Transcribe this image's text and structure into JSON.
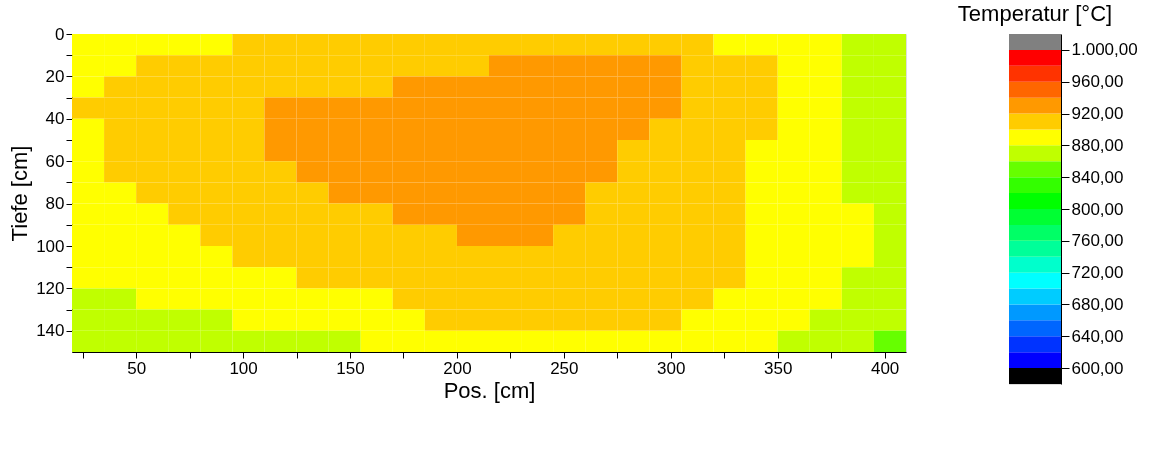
{
  "chart_data": {
    "type": "heatmap",
    "xlabel": "Pos. [cm]",
    "ylabel": "Tiefe [cm]",
    "clabel": "Temperatur [°C]",
    "x": [
      27.5,
      42.5,
      57.5,
      72.5,
      87.5,
      102.5,
      117.5,
      132.5,
      147.5,
      162.5,
      177.5,
      192.5,
      207.5,
      222.5,
      237.5,
      252.5,
      267.5,
      282.5,
      297.5,
      312.5,
      327.5,
      342.5,
      357.5,
      372.5,
      387.5,
      402.5
    ],
    "y": [
      5,
      15,
      25,
      35,
      45,
      55,
      65,
      75,
      85,
      95,
      105,
      115,
      125,
      135,
      145
    ],
    "xlim": [
      20,
      410
    ],
    "xticks": [
      {
        "value": 25,
        "label": null
      },
      50,
      {
        "value": 75,
        "label": null
      },
      100,
      {
        "value": 125,
        "label": null
      },
      150,
      {
        "value": 175,
        "label": null
      },
      200,
      {
        "value": 225,
        "label": null
      },
      250,
      {
        "value": 275,
        "label": null
      },
      300,
      {
        "value": 325,
        "label": null
      },
      350,
      {
        "value": 375,
        "label": null
      },
      400
    ],
    "ylim": [
      150,
      0
    ],
    "yticks": [
      0,
      {
        "value": 10,
        "label": null
      },
      20,
      {
        "value": 30,
        "label": null
      },
      40,
      {
        "value": 50,
        "label": null
      },
      60,
      {
        "value": 70,
        "label": null
      },
      80,
      {
        "value": 90,
        "label": null
      },
      100,
      {
        "value": 110,
        "label": null
      },
      120,
      {
        "value": 130,
        "label": null
      },
      140
    ],
    "cells": [
      [
        890,
        890,
        890,
        890,
        890,
        910,
        910,
        910,
        910,
        910,
        910,
        910,
        910,
        910,
        910,
        910,
        910,
        910,
        910,
        910,
        890,
        890,
        890,
        890,
        870,
        870
      ],
      [
        890,
        890,
        910,
        910,
        910,
        910,
        910,
        910,
        910,
        910,
        910,
        910,
        910,
        930,
        930,
        930,
        930,
        930,
        930,
        910,
        910,
        910,
        890,
        890,
        870,
        870
      ],
      [
        890,
        910,
        910,
        910,
        910,
        910,
        910,
        910,
        910,
        910,
        930,
        930,
        930,
        930,
        930,
        930,
        930,
        930,
        930,
        910,
        910,
        910,
        890,
        890,
        870,
        870
      ],
      [
        910,
        910,
        910,
        910,
        910,
        910,
        930,
        930,
        930,
        930,
        930,
        930,
        930,
        930,
        930,
        930,
        930,
        930,
        930,
        910,
        910,
        910,
        890,
        890,
        870,
        870
      ],
      [
        890,
        910,
        910,
        910,
        910,
        910,
        930,
        930,
        930,
        930,
        930,
        930,
        930,
        930,
        930,
        930,
        930,
        930,
        910,
        910,
        910,
        910,
        890,
        890,
        870,
        870
      ],
      [
        890,
        910,
        910,
        910,
        910,
        910,
        930,
        930,
        930,
        930,
        930,
        930,
        930,
        930,
        930,
        930,
        930,
        910,
        910,
        910,
        910,
        890,
        890,
        890,
        870,
        870
      ],
      [
        890,
        910,
        910,
        910,
        910,
        910,
        910,
        930,
        930,
        930,
        930,
        930,
        930,
        930,
        930,
        930,
        930,
        910,
        910,
        910,
        910,
        890,
        890,
        890,
        870,
        870
      ],
      [
        890,
        890,
        910,
        910,
        910,
        910,
        910,
        910,
        930,
        930,
        930,
        930,
        930,
        930,
        930,
        930,
        910,
        910,
        910,
        910,
        910,
        890,
        890,
        890,
        870,
        870
      ],
      [
        890,
        890,
        890,
        910,
        910,
        910,
        910,
        910,
        910,
        910,
        930,
        930,
        930,
        930,
        930,
        930,
        910,
        910,
        910,
        910,
        910,
        890,
        890,
        890,
        890,
        870
      ],
      [
        890,
        890,
        890,
        890,
        910,
        910,
        910,
        910,
        910,
        910,
        910,
        910,
        930,
        930,
        930,
        910,
        910,
        910,
        910,
        910,
        910,
        890,
        890,
        890,
        890,
        870
      ],
      [
        890,
        890,
        890,
        890,
        890,
        910,
        910,
        910,
        910,
        910,
        910,
        910,
        910,
        910,
        910,
        910,
        910,
        910,
        910,
        910,
        910,
        890,
        890,
        890,
        890,
        870
      ],
      [
        890,
        890,
        890,
        890,
        890,
        890,
        890,
        910,
        910,
        910,
        910,
        910,
        910,
        910,
        910,
        910,
        910,
        910,
        910,
        910,
        910,
        890,
        890,
        890,
        870,
        870
      ],
      [
        870,
        870,
        890,
        890,
        890,
        890,
        890,
        890,
        890,
        890,
        910,
        910,
        910,
        910,
        910,
        910,
        910,
        910,
        910,
        910,
        890,
        890,
        890,
        890,
        870,
        870
      ],
      [
        870,
        870,
        870,
        870,
        870,
        890,
        890,
        890,
        890,
        890,
        890,
        910,
        910,
        910,
        910,
        910,
        910,
        910,
        910,
        890,
        890,
        890,
        890,
        870,
        870,
        870
      ],
      [
        870,
        870,
        870,
        870,
        870,
        870,
        870,
        870,
        870,
        890,
        890,
        890,
        890,
        890,
        890,
        890,
        890,
        890,
        890,
        890,
        890,
        890,
        870,
        870,
        870,
        850
      ]
    ],
    "clim": [
      580,
      1020
    ],
    "cticks": [
      {
        "value": 600,
        "label": "600,00"
      },
      {
        "value": 640,
        "label": "640,00"
      },
      {
        "value": 680,
        "label": "680,00"
      },
      {
        "value": 720,
        "label": "720,00"
      },
      {
        "value": 760,
        "label": "760,00"
      },
      {
        "value": 800,
        "label": "800,00"
      },
      {
        "value": 840,
        "label": "840,00"
      },
      {
        "value": 880,
        "label": "880,00"
      },
      {
        "value": 920,
        "label": "920,00"
      },
      {
        "value": 960,
        "label": "960,00"
      },
      {
        "value": 1000,
        "label": "1.000,00"
      }
    ],
    "colors": [
      "#000000",
      "#0000ff",
      "#0033ff",
      "#0066ff",
      "#0099ff",
      "#00ccff",
      "#00ffff",
      "#00ffcc",
      "#00ff99",
      "#00ff66",
      "#00ff33",
      "#00ff00",
      "#33ff00",
      "#66ff00",
      "#c0ff00",
      "#ffff00",
      "#ffcc00",
      "#ff9900",
      "#ff6600",
      "#ff3300",
      "#ff0000",
      "#808080"
    ],
    "grid": false
  }
}
